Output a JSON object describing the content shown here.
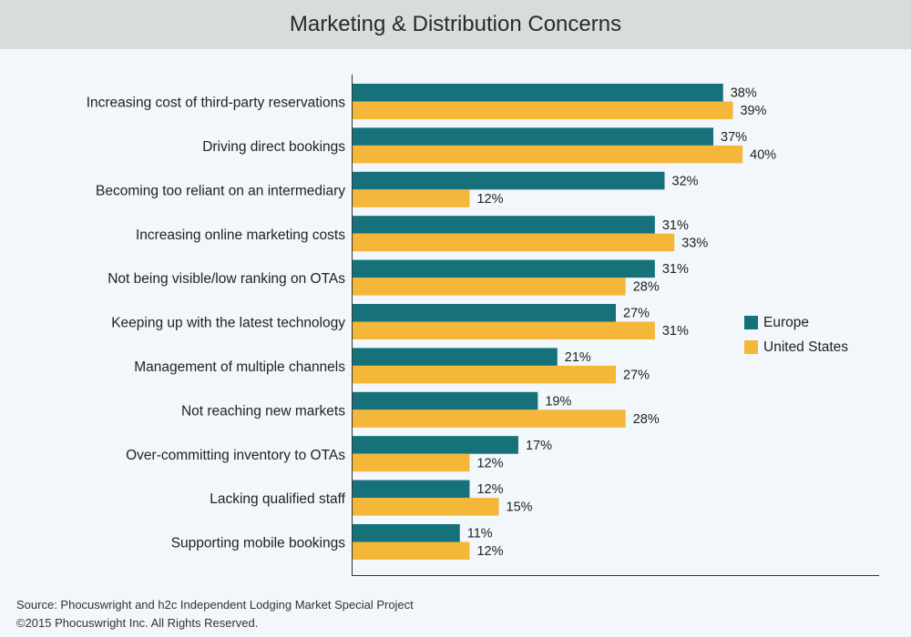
{
  "title": "Marketing & Distribution Concerns",
  "chart_data": {
    "type": "bar",
    "orientation": "horizontal",
    "categories": [
      "Increasing cost of third-party reservations",
      "Driving direct bookings",
      "Becoming too reliant on an intermediary",
      "Increasing online marketing costs",
      "Not being visible/low ranking on OTAs",
      "Keeping up with the latest technology",
      "Management of multiple channels",
      "Not reaching new markets",
      "Over-committing inventory to OTAs",
      "Lacking qualified staff",
      "Supporting mobile bookings"
    ],
    "series": [
      {
        "name": "Europe",
        "color": "#16717a",
        "values": [
          38,
          37,
          32,
          31,
          31,
          27,
          21,
          19,
          17,
          12,
          11
        ]
      },
      {
        "name": "United States",
        "color": "#f4b73a",
        "values": [
          39,
          40,
          12,
          33,
          28,
          31,
          27,
          28,
          12,
          15,
          12
        ]
      }
    ],
    "value_suffix": "%",
    "xlim": [
      0,
      54
    ],
    "grid": false,
    "legend_position": "right"
  },
  "footer": {
    "source": "Source: Phocuswright and h2c Independent Lodging Market Special Project",
    "copyright": "©2015 Phocuswright Inc. All Rights Reserved."
  }
}
